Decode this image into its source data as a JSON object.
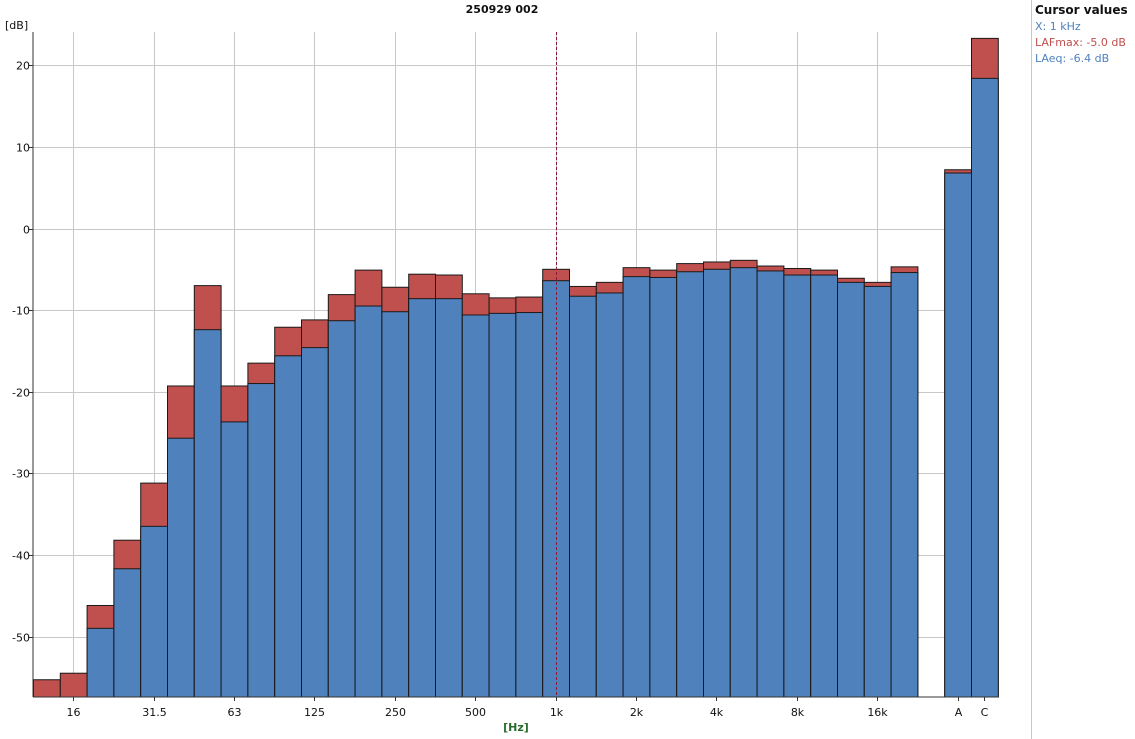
{
  "chart_data": {
    "type": "bar",
    "title": "250929 002",
    "xlabel": "[Hz]",
    "ylabel": "[dB]",
    "ylim": [
      -57,
      24
    ],
    "yticks": [
      20,
      10,
      0,
      -10,
      -20,
      -30,
      -40,
      -50
    ],
    "grid": true,
    "stacked_overlay": true,
    "categories": [
      "12.5",
      "16",
      "20",
      "25",
      "31.5",
      "40",
      "50",
      "63",
      "80",
      "100",
      "125",
      "160",
      "200",
      "250",
      "315",
      "400",
      "500",
      "630",
      "800",
      "1k",
      "1.25k",
      "1.6k",
      "2k",
      "2.5k",
      "3.15k",
      "4k",
      "5k",
      "6.3k",
      "8k",
      "10k",
      "12.5k",
      "16k",
      "20k",
      "A",
      "C"
    ],
    "tick_labels": [
      "16",
      "31.5",
      "63",
      "125",
      "250",
      "500",
      "1k",
      "2k",
      "4k",
      "8k",
      "16k",
      "A",
      "C"
    ],
    "series": [
      {
        "name": "LAFmax",
        "color": "#c0504d",
        "values": [
          -55.3,
          -54.5,
          -46.2,
          -38.2,
          -31.2,
          -19.3,
          -7.0,
          -19.3,
          -16.5,
          -12.1,
          -11.2,
          -8.1,
          -5.1,
          -7.2,
          -5.6,
          -5.7,
          -8.0,
          -8.5,
          -8.4,
          -5.0,
          -7.1,
          -6.6,
          -4.8,
          -5.1,
          -4.3,
          -4.1,
          -3.9,
          -4.6,
          -4.9,
          -5.1,
          -6.1,
          -6.6,
          -4.7,
          7.2,
          23.3
        ]
      },
      {
        "name": "LAeq",
        "color": "#4f81bd",
        "values": [
          null,
          null,
          -49.0,
          -41.7,
          -36.5,
          -25.7,
          -12.4,
          -23.7,
          -19.0,
          -15.6,
          -14.6,
          -11.3,
          -9.5,
          -10.2,
          -8.6,
          -8.6,
          -10.6,
          -10.4,
          -10.3,
          -6.4,
          -8.3,
          -7.9,
          -5.9,
          -6.0,
          -5.3,
          -5.0,
          -4.8,
          -5.2,
          -5.7,
          -5.7,
          -6.6,
          -7.1,
          -5.4,
          6.8,
          18.4
        ]
      }
    ],
    "cursor": {
      "x": "1k"
    }
  },
  "cursor_panel": {
    "title": "Cursor values",
    "x_line": "X: 1 kHz",
    "lafmax_line": "LAFmax: -5.0 dB",
    "laeq_line": "LAeq: -6.4 dB",
    "x_color": "#4f81bd",
    "lafmax_color": "#c0504d",
    "laeq_color": "#4f81bd"
  },
  "colors": {
    "grid": "#c8c8c8",
    "cursor": "#8b1a3a",
    "outline": "#1a1a1a"
  }
}
